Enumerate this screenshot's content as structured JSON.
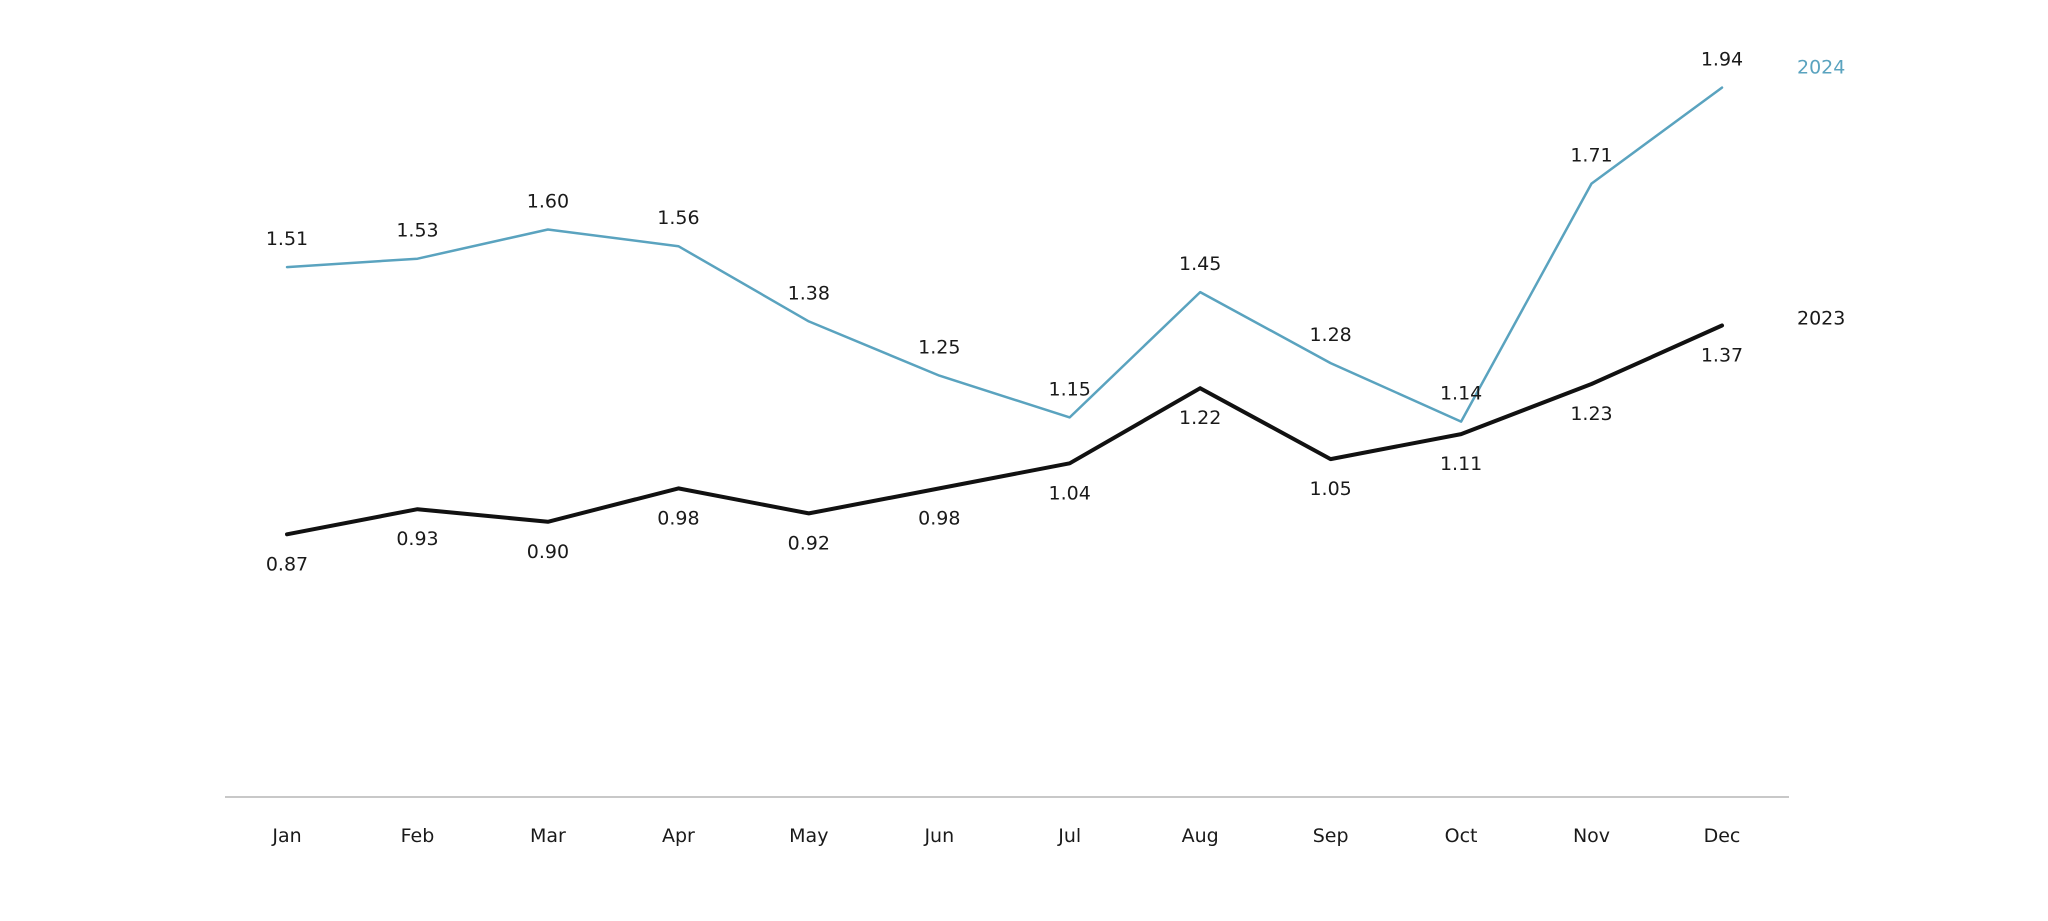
{
  "chart_data": {
    "type": "line",
    "categories": [
      "Jan",
      "Feb",
      "Mar",
      "Apr",
      "May",
      "Jun",
      "Jul",
      "Aug",
      "Sep",
      "Oct",
      "Nov",
      "Dec"
    ],
    "series": [
      {
        "name": "2024",
        "color": "#5aa3bf",
        "values": [
          1.51,
          1.53,
          1.6,
          1.56,
          1.38,
          1.25,
          1.15,
          1.45,
          1.28,
          1.14,
          1.71,
          1.94
        ],
        "labels": [
          "1.51",
          "1.53",
          "1.60",
          "1.56",
          "1.38",
          "1.25",
          "1.15",
          "1.45",
          "1.28",
          "1.14",
          "1.71",
          "1.94"
        ]
      },
      {
        "name": "2023",
        "color": "#111111",
        "values": [
          0.87,
          0.93,
          0.9,
          0.98,
          0.92,
          0.98,
          1.04,
          1.22,
          1.05,
          1.11,
          1.23,
          1.37
        ],
        "labels": [
          "0.87",
          "0.93",
          "0.90",
          "0.98",
          "0.92",
          "0.98",
          "1.04",
          "1.22",
          "1.05",
          "1.11",
          "1.23",
          "1.37"
        ]
      }
    ],
    "title": "",
    "xlabel": "",
    "ylabel": "",
    "ylim": [
      0,
      2.0
    ],
    "grid": false,
    "legend": "end-of-line labels"
  }
}
